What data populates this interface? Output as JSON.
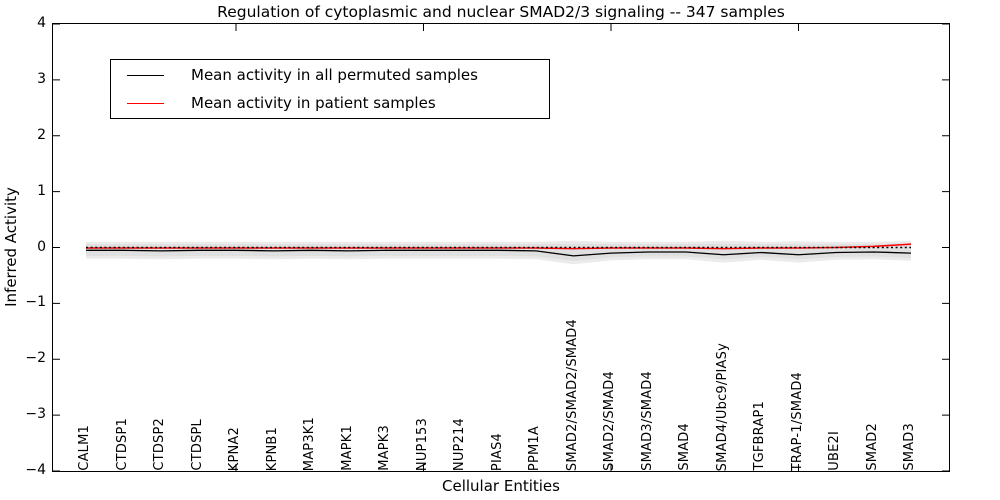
{
  "title": "Regulation of cytoplasmic and nuclear SMAD2/3 signaling -- 347 samples",
  "legend": {
    "entries": [
      {
        "label": "Mean activity in all permuted samples",
        "color": "#000000"
      },
      {
        "label": "Mean activity in patient samples",
        "color": "#ff0000"
      }
    ],
    "position": "upper left"
  },
  "chart_data": {
    "type": "line",
    "title": "Regulation of cytoplasmic and nuclear SMAD2/3 signaling -- 347 samples",
    "xlabel": "Cellular Entities",
    "ylabel": "Inferred Activity",
    "ylim": [
      -4,
      4
    ],
    "yticks": [
      4,
      3,
      2,
      1,
      0,
      -1,
      -2,
      -3,
      -4
    ],
    "xticks_at_values": [
      5,
      10,
      15,
      20
    ],
    "grid": false,
    "legend_position": "upper left",
    "categories": [
      "CALM1",
      "CTDSP1",
      "CTDSP2",
      "CTDSPL",
      "KPNA2",
      "KPNB1",
      "MAP3K1",
      "MAPK1",
      "MAPK3",
      "NUP153",
      "NUP214",
      "PIAS4",
      "PPM1A",
      "SMAD2/SMAD2/SMAD4",
      "SMAD2/SMAD4",
      "SMAD3/SMAD4",
      "SMAD4",
      "SMAD4/Ubc9/PIASy",
      "TGFBRAP1",
      "TRAP-1/SMAD4",
      "UBE2I",
      "SMAD2",
      "SMAD3"
    ],
    "series": [
      {
        "name": "Mean activity in all permuted samples",
        "color": "#000000",
        "width": 1.3,
        "values": [
          -0.05,
          -0.05,
          -0.06,
          -0.05,
          -0.05,
          -0.06,
          -0.05,
          -0.06,
          -0.05,
          -0.05,
          -0.05,
          -0.05,
          -0.06,
          -0.15,
          -0.1,
          -0.08,
          -0.08,
          -0.13,
          -0.09,
          -0.13,
          -0.09,
          -0.08,
          -0.1
        ]
      },
      {
        "name": "Mean activity in patient samples",
        "color": "#ff0000",
        "width": 1.5,
        "values": [
          -0.01,
          -0.01,
          -0.01,
          -0.01,
          -0.01,
          -0.01,
          -0.01,
          -0.01,
          -0.01,
          -0.01,
          -0.01,
          -0.01,
          -0.01,
          -0.02,
          -0.01,
          -0.01,
          -0.01,
          -0.02,
          -0.01,
          -0.01,
          0.0,
          0.02,
          0.06
        ]
      }
    ],
    "bands": [
      {
        "name": "outer-confidence-band",
        "color": "#ebebeb",
        "upper": [
          0.1,
          0.1,
          0.1,
          0.1,
          0.1,
          0.1,
          0.1,
          0.1,
          0.1,
          0.1,
          0.1,
          0.1,
          0.1,
          0.12,
          0.1,
          0.1,
          0.1,
          0.12,
          0.1,
          0.11,
          0.1,
          0.1,
          0.12
        ],
        "lower": [
          -0.2,
          -0.2,
          -0.21,
          -0.2,
          -0.2,
          -0.21,
          -0.2,
          -0.21,
          -0.2,
          -0.2,
          -0.2,
          -0.2,
          -0.21,
          -0.3,
          -0.23,
          -0.21,
          -0.21,
          -0.27,
          -0.22,
          -0.27,
          -0.22,
          -0.21,
          -0.24
        ]
      },
      {
        "name": "inner-confidence-band",
        "color": "#e0e0e0",
        "upper": [
          0.06,
          0.06,
          0.06,
          0.06,
          0.06,
          0.06,
          0.06,
          0.06,
          0.06,
          0.06,
          0.06,
          0.06,
          0.06,
          0.07,
          0.06,
          0.06,
          0.06,
          0.07,
          0.06,
          0.06,
          0.06,
          0.06,
          0.08
        ],
        "lower": [
          -0.15,
          -0.15,
          -0.16,
          -0.15,
          -0.15,
          -0.16,
          -0.15,
          -0.16,
          -0.15,
          -0.15,
          -0.15,
          -0.15,
          -0.16,
          -0.24,
          -0.18,
          -0.16,
          -0.16,
          -0.21,
          -0.17,
          -0.21,
          -0.17,
          -0.16,
          -0.19
        ]
      }
    ],
    "reference_line": {
      "y": 0,
      "style": "dotted",
      "color": "#000000"
    }
  }
}
